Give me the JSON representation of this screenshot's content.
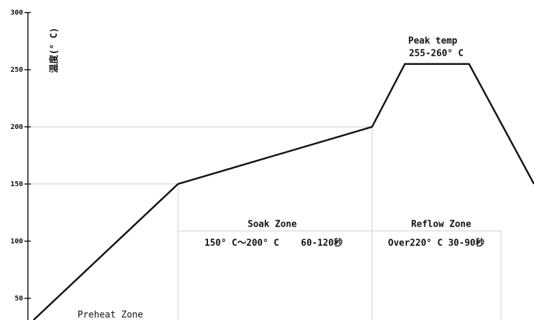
{
  "chart_data": {
    "type": "line",
    "y_label": "温度(° C)",
    "x": [
      3,
      210,
      488,
      535,
      627,
      720
    ],
    "xlim": [
      0,
      720
    ],
    "series": [
      {
        "color": "#111111",
        "values": [
          31,
          150,
          200,
          255,
          255,
          150
        ]
      }
    ],
    "ylim": [
      31,
      300
    ],
    "yticks": [
      50,
      100,
      150,
      200,
      250,
      300
    ],
    "zone_boundaries": [
      210,
      488,
      673
    ],
    "zone_line": 109,
    "annotations": {
      "peak_title": "Peak temp",
      "peak_range": "255-260° C",
      "soak_title": "Soak Zone",
      "soak_detail": "150° C～200° C    60-120秒",
      "reflow_title": "Reflow Zone",
      "reflow_detail": "Over220° C 30-90秒",
      "preheat_title": "Preheat Zone"
    }
  }
}
